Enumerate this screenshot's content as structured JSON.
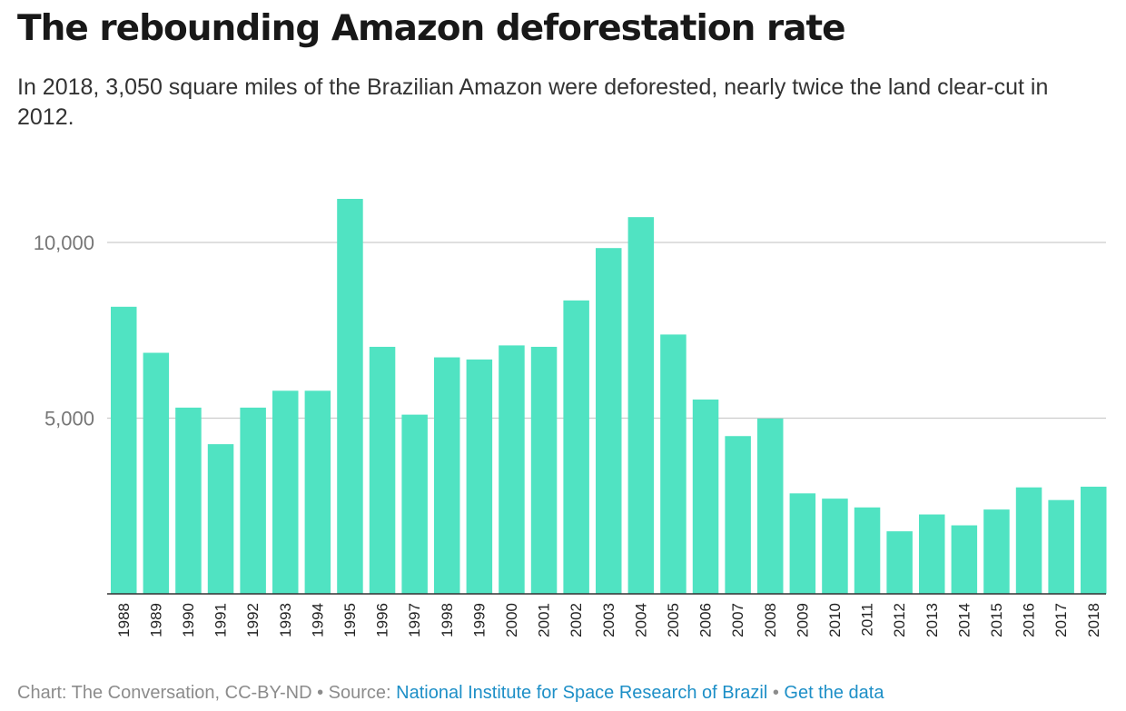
{
  "header": {
    "title": "The rebounding Amazon deforestation rate",
    "subtitle": "In 2018, 3,050 square miles of the Brazilian Amazon were deforested, nearly twice the land clear-cut in 2012."
  },
  "footer": {
    "credit": "Chart: The Conversation, CC-BY-ND • Source: ",
    "source_link": "National Institute for Space Research of Brazil",
    "separator": " • ",
    "data_link": "Get the data"
  },
  "colors": {
    "bar": "#50e3c2",
    "grid": "#cccccc",
    "axis": "#333333",
    "tick_text": "#777777",
    "label_text": "#222222",
    "link": "#1d8fc7"
  },
  "chart_data": {
    "type": "bar",
    "title": "The rebounding Amazon deforestation rate",
    "xlabel": "",
    "ylabel": "",
    "ylim": [
      0,
      12000
    ],
    "y_ticks": [
      5000,
      10000
    ],
    "y_tick_labels": [
      "5,000",
      "10,000"
    ],
    "grid": true,
    "categories": [
      "1988",
      "1989",
      "1990",
      "1991",
      "1992",
      "1993",
      "1994",
      "1995",
      "1996",
      "1997",
      "1998",
      "1999",
      "2000",
      "2001",
      "2002",
      "2003",
      "2004",
      "2005",
      "2006",
      "2007",
      "2008",
      "2009",
      "2010",
      "2011",
      "2012",
      "2013",
      "2014",
      "2015",
      "2016",
      "2017",
      "2018"
    ],
    "values": [
      8170,
      6860,
      5300,
      4260,
      5300,
      5780,
      5780,
      11240,
      7030,
      5100,
      6730,
      6670,
      7070,
      7030,
      8350,
      9840,
      10720,
      7380,
      5530,
      4490,
      4990,
      2860,
      2710,
      2460,
      1780,
      2260,
      1950,
      2400,
      3030,
      2670,
      3050
    ]
  }
}
